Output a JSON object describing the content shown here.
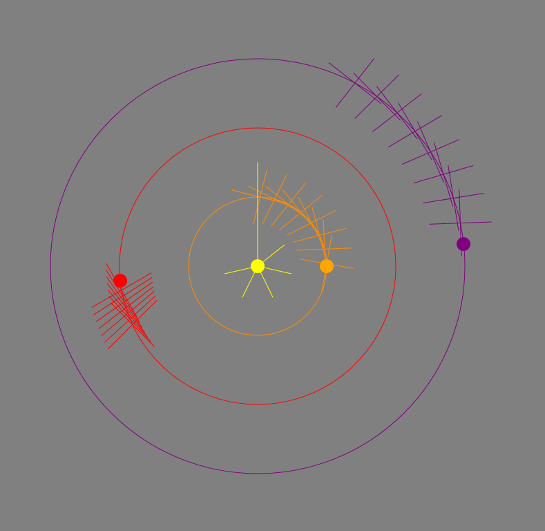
{
  "background": "#808080",
  "sun": {
    "color": "#ffff00",
    "ray_color": "#ffff00"
  },
  "orbits": [
    {
      "id": "inner",
      "orbit_color": "#ff8c00",
      "planet_color": "#ffa500"
    },
    {
      "id": "middle",
      "orbit_color": "#ff0000",
      "planet_color": "#ff0000"
    },
    {
      "id": "outer",
      "orbit_color": "#800080",
      "planet_color": "#800080"
    }
  ]
}
